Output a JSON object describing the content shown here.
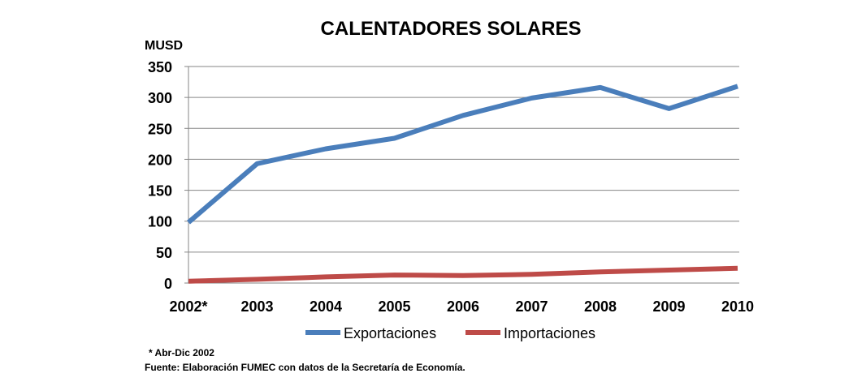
{
  "chart_data": {
    "type": "line",
    "title": "CALENTADORES SOLARES",
    "ylabel": "MUSD",
    "xlabel": "",
    "categories": [
      "2002*",
      "2003",
      "2004",
      "2005",
      "2006",
      "2007",
      "2008",
      "2009",
      "2010"
    ],
    "y_ticks": [
      "0",
      "50",
      "100",
      "150",
      "200",
      "250",
      "300",
      "350"
    ],
    "ylim": [
      0,
      350
    ],
    "grid": true,
    "legend_position": "bottom",
    "series": [
      {
        "name": "Exportaciones",
        "color": "#4a7ebb",
        "values": [
          98,
          193,
          217,
          234,
          271,
          299,
          316,
          282,
          318
        ]
      },
      {
        "name": "Importaciones",
        "color": "#be4b48",
        "values": [
          3,
          6,
          10,
          13,
          12,
          14,
          18,
          21,
          24
        ]
      }
    ]
  },
  "notes": {
    "footnote": "* Abr-Dic 2002",
    "source": "Fuente: Elaboración FUMEC con datos de la Secretaría de Economía."
  }
}
